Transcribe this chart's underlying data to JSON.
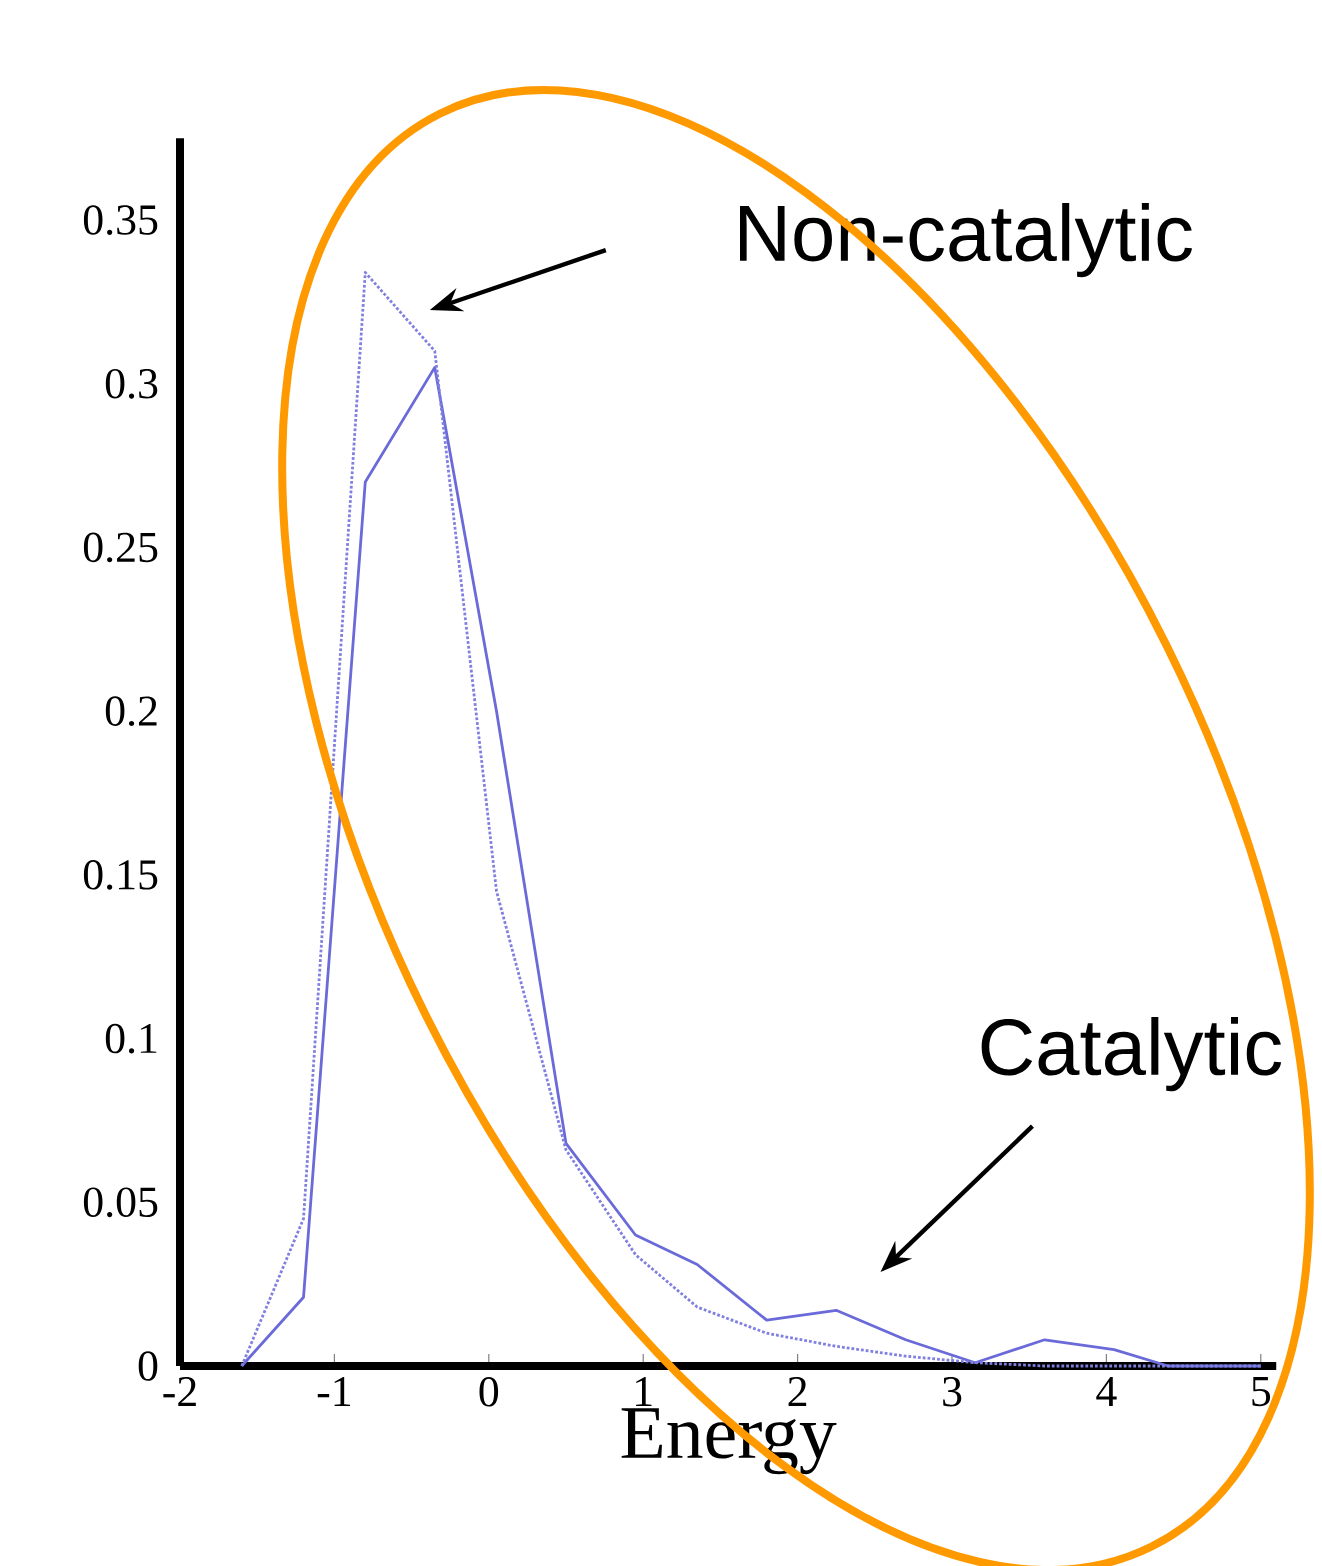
{
  "chart_data": {
    "type": "line",
    "xlabel": "Energy",
    "xlim": [
      -2,
      5.1
    ],
    "ylim": [
      0,
      0.375
    ],
    "xticks": [
      -2,
      -1,
      0,
      1,
      2,
      3,
      4,
      5
    ],
    "yticks": [
      0,
      0.05,
      0.1,
      0.15,
      0.2,
      0.25,
      0.3,
      0.35
    ],
    "series": [
      {
        "color": "#6a6ad8",
        "line_style": "solid",
        "x": [
          -1.6,
          -1.2,
          -0.8,
          -0.35,
          0.05,
          0.5,
          0.95,
          1.35,
          1.8,
          2.25,
          2.7,
          3.15,
          3.6,
          4.05,
          4.4,
          5
        ],
        "values": [
          0,
          0.021,
          0.27,
          0.305,
          0.2,
          0.068,
          0.04,
          0.031,
          0.014,
          0.017,
          0.008,
          0.001,
          0.008,
          0.005,
          0,
          0
        ]
      },
      {
        "color": "#8080e0",
        "line_style": "dotted",
        "x": [
          -1.6,
          -1.2,
          -0.8,
          -0.35,
          0.05,
          0.5,
          0.95,
          1.35,
          1.8,
          2.25,
          2.7,
          3.15,
          3.6,
          5
        ],
        "values": [
          0,
          0.045,
          0.334,
          0.31,
          0.145,
          0.066,
          0.034,
          0.018,
          0.01,
          0.006,
          0.003,
          0.001,
          0,
          0
        ]
      }
    ],
    "annotations": [
      "Non-catalytic",
      "Catalytic"
    ]
  }
}
